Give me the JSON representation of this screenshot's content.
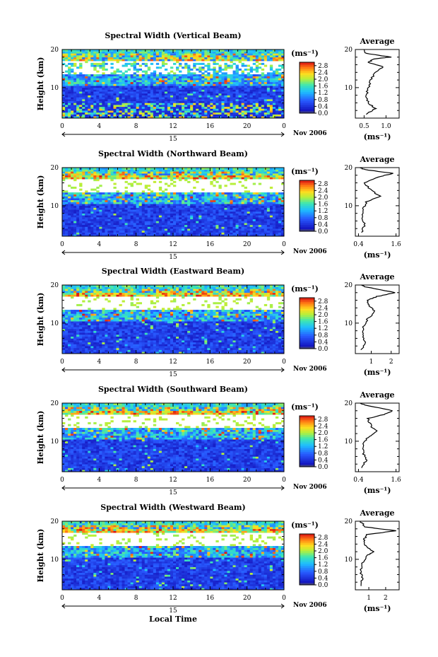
{
  "chart_data": {
    "type": "heatmap",
    "panels": [
      {
        "title": "Spectral Width (Vertical Beam)",
        "ylabel": "Height (km)",
        "ylim": [
          2,
          20
        ],
        "yticks": [
          "20",
          "10"
        ],
        "xlim": [
          0,
          24
        ],
        "xticks": [
          "0",
          "4",
          "8",
          "12",
          "16",
          "20",
          "0"
        ],
        "date_label": "15",
        "month_label": "Nov 2006",
        "colorbar_unit": "(ms⁻¹)",
        "colorbar_ticks": [
          "0.0",
          "0.4",
          "0.8",
          "1.2",
          "1.6",
          "2.0",
          "2.4",
          "2.8"
        ],
        "colorbar_range": [
          0,
          3.0
        ],
        "average": {
          "title": "Average",
          "xlabel": "(ms⁻¹)",
          "xticks": [
            "0.5",
            "1.0"
          ],
          "xlim": [
            0.3,
            1.3
          ],
          "profile": [
            [
              0.55,
              3
            ],
            [
              0.75,
              4.5
            ],
            [
              0.6,
              6
            ],
            [
              0.55,
              8
            ],
            [
              0.6,
              10
            ],
            [
              0.65,
              12
            ],
            [
              0.75,
              14
            ],
            [
              0.95,
              15.5
            ],
            [
              0.6,
              16.5
            ],
            [
              0.7,
              17.5
            ],
            [
              1.1,
              18
            ],
            [
              0.55,
              19
            ],
            [
              0.5,
              20
            ]
          ]
        }
      },
      {
        "title": "Spectral Width (Northward Beam)",
        "ylabel": "Height (km)",
        "ylim": [
          2,
          20
        ],
        "yticks": [
          "20",
          "10"
        ],
        "xlim": [
          0,
          24
        ],
        "xticks": [
          "0",
          "4",
          "8",
          "12",
          "16",
          "20",
          "0"
        ],
        "date_label": "15",
        "month_label": "Nov 2006",
        "colorbar_unit": "(ms⁻¹)",
        "colorbar_ticks": [
          "0.0",
          "0.4",
          "0.8",
          "1.2",
          "1.6",
          "2.0",
          "2.4",
          "2.8"
        ],
        "colorbar_range": [
          0,
          3.0
        ],
        "average": {
          "title": "Average",
          "xlabel": "(ms⁻¹)",
          "xticks": [
            "0.4",
            "1.6"
          ],
          "xlim": [
            0.3,
            1.7
          ],
          "profile": [
            [
              0.5,
              3
            ],
            [
              0.6,
              5
            ],
            [
              0.5,
              7
            ],
            [
              0.55,
              9
            ],
            [
              0.65,
              11
            ],
            [
              1.1,
              12.5
            ],
            [
              0.8,
              14
            ],
            [
              0.6,
              16
            ],
            [
              1.0,
              17.5
            ],
            [
              1.5,
              18.5
            ],
            [
              0.6,
              19.5
            ],
            [
              0.45,
              20
            ]
          ]
        }
      },
      {
        "title": "Spectral Width (Eastward Beam)",
        "ylabel": "Height (km)",
        "ylim": [
          2,
          20
        ],
        "yticks": [
          "20",
          "10"
        ],
        "xlim": [
          0,
          24
        ],
        "xticks": [
          "0",
          "4",
          "8",
          "12",
          "16",
          "20",
          "0"
        ],
        "date_label": "15",
        "month_label": "Nov 2006",
        "colorbar_unit": "(ms⁻¹)",
        "colorbar_ticks": [
          "0.0",
          "0.4",
          "0.8",
          "1.2",
          "1.6",
          "2.0",
          "2.4",
          "2.8"
        ],
        "colorbar_range": [
          0,
          3.0
        ],
        "average": {
          "title": "Average",
          "xlabel": "(ms⁻¹)",
          "xticks": [
            "1",
            "2"
          ],
          "xlim": [
            0.2,
            2.4
          ],
          "profile": [
            [
              0.5,
              3
            ],
            [
              0.7,
              5
            ],
            [
              0.55,
              7
            ],
            [
              0.6,
              9
            ],
            [
              0.8,
              11
            ],
            [
              1.2,
              13
            ],
            [
              0.9,
              14.5
            ],
            [
              0.8,
              16
            ],
            [
              1.3,
              17
            ],
            [
              2.2,
              18
            ],
            [
              0.7,
              19.5
            ],
            [
              0.5,
              20
            ]
          ]
        }
      },
      {
        "title": "Spectral Width (Southward Beam)",
        "ylabel": "Height (km)",
        "ylim": [
          2,
          20
        ],
        "yticks": [
          "20",
          "10"
        ],
        "xlim": [
          0,
          24
        ],
        "xticks": [
          "0",
          "4",
          "8",
          "12",
          "16",
          "20",
          "0"
        ],
        "date_label": "15",
        "month_label": "Nov 2006",
        "colorbar_unit": "(ms⁻¹)",
        "colorbar_ticks": [
          "0.0",
          "0.4",
          "0.8",
          "1.2",
          "1.6",
          "2.0",
          "2.4",
          "2.8"
        ],
        "colorbar_range": [
          0,
          3.0
        ],
        "average": {
          "title": "Average",
          "xlabel": "(ms⁻¹)",
          "xticks": [
            "0.4",
            "1.6"
          ],
          "xlim": [
            0.3,
            1.7
          ],
          "profile": [
            [
              0.5,
              3
            ],
            [
              0.65,
              5
            ],
            [
              0.55,
              7
            ],
            [
              0.55,
              9
            ],
            [
              0.7,
              11
            ],
            [
              1.0,
              12.5
            ],
            [
              0.8,
              14
            ],
            [
              0.7,
              16
            ],
            [
              1.2,
              17
            ],
            [
              1.5,
              18
            ],
            [
              0.6,
              19.5
            ],
            [
              0.45,
              20
            ]
          ]
        }
      },
      {
        "title": "Spectral Width (Westward Beam)",
        "ylabel": "Height (km)",
        "ylim": [
          2,
          20
        ],
        "yticks": [
          "20",
          "10"
        ],
        "xlim": [
          0,
          24
        ],
        "xticks": [
          "0",
          "4",
          "8",
          "12",
          "16",
          "20",
          "0"
        ],
        "date_label": "15",
        "month_label": "Nov 2006",
        "colorbar_unit": "(ms⁻¹)",
        "colorbar_ticks": [
          "0.0",
          "0.4",
          "0.8",
          "1.2",
          "1.6",
          "2.0",
          "2.4",
          "2.8"
        ],
        "colorbar_range": [
          0,
          3.0
        ],
        "average": {
          "title": "Average",
          "xlabel": "(ms⁻¹)",
          "xticks": [
            "1",
            "2"
          ],
          "xlim": [
            0.2,
            2.8
          ],
          "profile": [
            [
              0.5,
              3
            ],
            [
              0.6,
              5
            ],
            [
              0.5,
              7
            ],
            [
              0.6,
              9
            ],
            [
              0.9,
              11
            ],
            [
              1.3,
              12
            ],
            [
              0.8,
              13.5
            ],
            [
              0.7,
              15
            ],
            [
              0.9,
              16.5
            ],
            [
              2.6,
              17.5
            ],
            [
              0.8,
              18.5
            ],
            [
              0.5,
              20
            ]
          ]
        }
      }
    ],
    "xlabel": "Local Time"
  }
}
